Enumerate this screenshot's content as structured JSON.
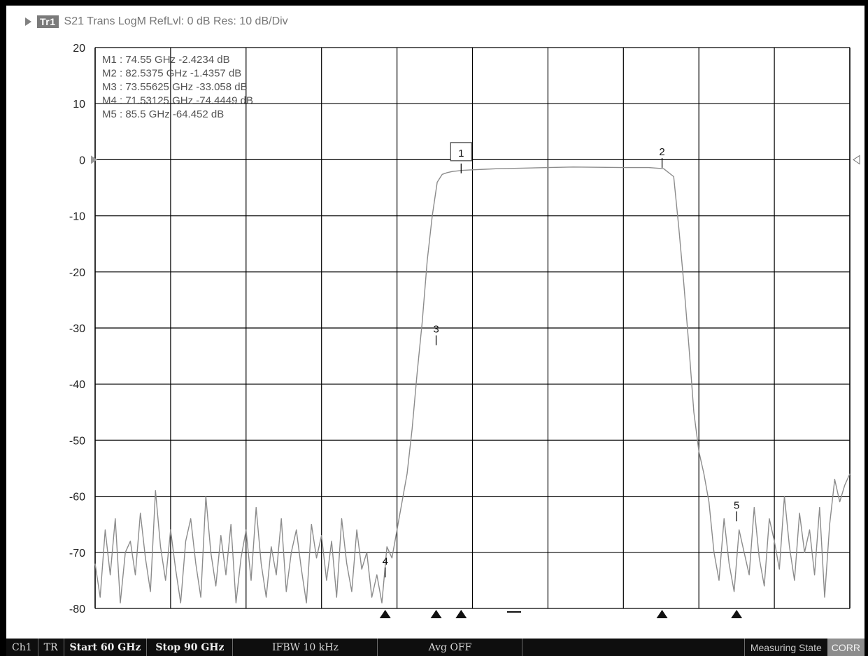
{
  "trace_header": {
    "badge": "Tr1",
    "title": "S21 Trans LogM RefLvl: 0  dB Res: 10  dB/Div"
  },
  "marker_table": [
    "M1 :  74.55 GHz -2.4234  dB",
    "M2 :  82.5375 GHz -1.4357  dB",
    "M3 :  73.55625 GHz -33.058  dB",
    "M4 :  71.53125 GHz -74.4449  dB",
    "M5 :  85.5 GHz -64.452  dB"
  ],
  "chart_data": {
    "type": "line",
    "xlim": [
      60,
      90
    ],
    "ylim": [
      -80,
      20
    ],
    "y_ticks": [
      20,
      10,
      0,
      -10,
      -20,
      -30,
      -40,
      -50,
      -60,
      -70,
      -80
    ],
    "x_divisions": 10,
    "grid": true,
    "series": [
      {
        "x": [
          60.0,
          60.2,
          60.4,
          60.6,
          60.8,
          61.0,
          61.2,
          61.4,
          61.6,
          61.8,
          62.0,
          62.2,
          62.4,
          62.6,
          62.8,
          63.0,
          63.2,
          63.4,
          63.6,
          63.8,
          64.0,
          64.2,
          64.4,
          64.6,
          64.8,
          65.0,
          65.2,
          65.4,
          65.6,
          65.8,
          66.0,
          66.2,
          66.4,
          66.6,
          66.8,
          67.0,
          67.2,
          67.4,
          67.6,
          67.8,
          68.0,
          68.2,
          68.4,
          68.6,
          68.8,
          69.0,
          69.2,
          69.4,
          69.6,
          69.8,
          70.0,
          70.2,
          70.4,
          70.6,
          70.8,
          71.0,
          71.2,
          71.4,
          71.6,
          71.8,
          72.0,
          72.2,
          72.4,
          72.6,
          72.8,
          73.0,
          73.2,
          73.4,
          73.6,
          73.8,
          74.0,
          74.2,
          74.4,
          74.6,
          75.0,
          75.5,
          76.0,
          77.0,
          78.0,
          79.0,
          80.0,
          81.0,
          82.0,
          82.6,
          83.0,
          83.2,
          83.4,
          83.6,
          83.8,
          84.0,
          84.2,
          84.4,
          84.6,
          84.8,
          85.0,
          85.2,
          85.4,
          85.6,
          85.8,
          86.0,
          86.2,
          86.4,
          86.6,
          86.8,
          87.0,
          87.2,
          87.4,
          87.6,
          87.8,
          88.0,
          88.2,
          88.4,
          88.6,
          88.8,
          89.0,
          89.2,
          89.4,
          89.6,
          89.8,
          90.0
        ],
        "y": [
          -72,
          -78,
          -66,
          -74,
          -64,
          -79,
          -70,
          -68,
          -74,
          -63,
          -71,
          -77,
          -59,
          -69,
          -75,
          -66,
          -73,
          -79,
          -68,
          -64,
          -72,
          -78,
          -60,
          -70,
          -76,
          -67,
          -74,
          -65,
          -79,
          -71,
          -66,
          -75,
          -62,
          -72,
          -78,
          -69,
          -74,
          -64,
          -77,
          -70,
          -66,
          -73,
          -79,
          -65,
          -71,
          -67,
          -75,
          -68,
          -78,
          -64,
          -72,
          -77,
          -66,
          -73,
          -70,
          -78,
          -74,
          -79,
          -69,
          -71,
          -66,
          -61,
          -56,
          -48,
          -38,
          -29,
          -18,
          -10,
          -4,
          -2.6,
          -2.3,
          -2.1,
          -2.0,
          -1.9,
          -1.8,
          -1.7,
          -1.6,
          -1.5,
          -1.4,
          -1.3,
          -1.35,
          -1.4,
          -1.4,
          -1.6,
          -3,
          -12,
          -22,
          -33,
          -45,
          -52,
          -56,
          -61,
          -70,
          -75,
          -64,
          -72,
          -77,
          -66,
          -70,
          -74,
          -62,
          -71,
          -76,
          -64,
          -68,
          -73,
          -60,
          -69,
          -75,
          -63,
          -70,
          -66,
          -74,
          -62,
          -78,
          -65,
          -57,
          -61,
          -58,
          -56
        ]
      }
    ],
    "markers": [
      {
        "label": "1",
        "x": 74.55,
        "y": -2.4234,
        "boxed": true
      },
      {
        "label": "2",
        "x": 82.5375,
        "y": -1.4357
      },
      {
        "label": "3",
        "x": 73.55625,
        "y": -33.058
      },
      {
        "label": "4",
        "x": 71.53125,
        "y": -74.4449
      },
      {
        "label": "5",
        "x": 85.5,
        "y": -64.452
      }
    ],
    "bottom_triangles_x": [
      71.53125,
      73.55625,
      74.55,
      82.5375,
      85.5
    ],
    "ref_arrow_y": 0
  },
  "colors": {
    "grid": "#000000",
    "trace": "#8c8c8c",
    "label": "#555555"
  },
  "status_bar": {
    "channel": "Ch1",
    "mode": "TR",
    "start": "Start 60 GHz",
    "stop": "Stop 90 GHz",
    "ifbw": "IFBW 10 kHz",
    "avg": "Avg OFF",
    "state": "Measuring State",
    "corr": "CORR"
  }
}
